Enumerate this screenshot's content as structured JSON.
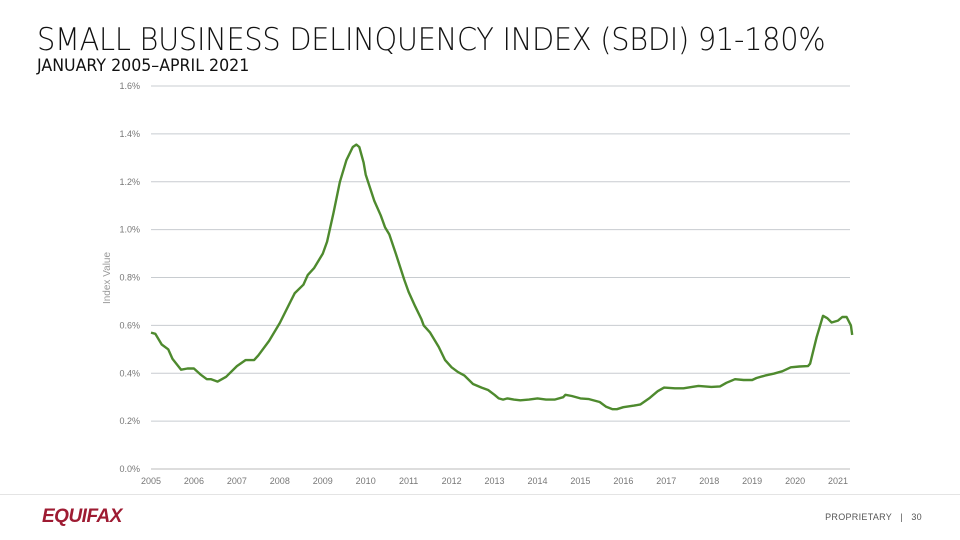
{
  "header": {
    "title": "SMALL BUSINESS DELINQUENCY INDEX (SBDI) 91-180%",
    "subtitle": "JANUARY 2005–APRIL 2021"
  },
  "footer": {
    "logo": "EQUIFAX",
    "proprietary": "PROPRIETARY",
    "separator": "|",
    "page": "30"
  },
  "chart_data": {
    "type": "line",
    "title": "",
    "xlabel": "",
    "ylabel": "Index Value",
    "xlim": [
      2005,
      2021.3
    ],
    "ylim": [
      0,
      1.6
    ],
    "grid": true,
    "line_color": "#4e8a2e",
    "x_ticks": [
      "2005",
      "2006",
      "2007",
      "2008",
      "2009",
      "2010",
      "2011",
      "2012",
      "2013",
      "2014",
      "2015",
      "2016",
      "2017",
      "2018",
      "2019",
      "2020",
      "2021"
    ],
    "y_ticks": [
      "0.0%",
      "0.2%",
      "0.4%",
      "0.6%",
      "0.8%",
      "1.0%",
      "1.2%",
      "1.4%",
      "1.6%"
    ],
    "series": [
      {
        "x": [
          2005.0,
          2005.1,
          2005.25,
          2005.4,
          2005.5,
          2005.7,
          2005.85,
          2006.0,
          2006.15,
          2006.3,
          2006.4,
          2006.55,
          2006.75,
          2007.0,
          2007.2,
          2007.4,
          2007.5,
          2007.75,
          2008.0,
          2008.25,
          2008.35,
          2008.55,
          2008.65,
          2008.8,
          2009.0,
          2009.1,
          2009.25,
          2009.4,
          2009.55,
          2009.7,
          2009.78,
          2009.85,
          2009.95,
          2010.0,
          2010.2,
          2010.35,
          2010.45,
          2010.55,
          2010.7,
          2010.9,
          2011.0,
          2011.15,
          2011.3,
          2011.35,
          2011.5,
          2011.7,
          2011.85,
          2012.0,
          2012.15,
          2012.3,
          2012.5,
          2012.7,
          2012.85,
          2013.0,
          2013.1,
          2013.2,
          2013.3,
          2013.45,
          2013.6,
          2013.8,
          2014.0,
          2014.2,
          2014.4,
          2014.6,
          2014.65,
          2014.8,
          2015.0,
          2015.2,
          2015.45,
          2015.6,
          2015.75,
          2015.85,
          2016.0,
          2016.25,
          2016.4,
          2016.6,
          2016.8,
          2016.95,
          2017.2,
          2017.4,
          2017.6,
          2017.75,
          2017.9,
          2018.05,
          2018.25,
          2018.4,
          2018.6,
          2018.8,
          2019.0,
          2019.1,
          2019.3,
          2019.5,
          2019.7,
          2019.9,
          2020.1,
          2020.3,
          2020.35,
          2020.5,
          2020.65,
          2020.75,
          2020.85,
          2021.0,
          2021.1,
          2021.2,
          2021.3,
          2021.33
        ],
        "values": [
          0.57,
          0.565,
          0.52,
          0.5,
          0.46,
          0.415,
          0.42,
          0.42,
          0.395,
          0.375,
          0.375,
          0.365,
          0.385,
          0.43,
          0.455,
          0.455,
          0.475,
          0.535,
          0.61,
          0.7,
          0.735,
          0.77,
          0.81,
          0.84,
          0.9,
          0.95,
          1.07,
          1.2,
          1.29,
          1.345,
          1.355,
          1.345,
          1.28,
          1.23,
          1.12,
          1.06,
          1.01,
          0.98,
          0.9,
          0.79,
          0.74,
          0.68,
          0.625,
          0.6,
          0.57,
          0.51,
          0.455,
          0.425,
          0.405,
          0.39,
          0.355,
          0.34,
          0.33,
          0.31,
          0.295,
          0.29,
          0.295,
          0.29,
          0.287,
          0.29,
          0.295,
          0.29,
          0.29,
          0.3,
          0.31,
          0.305,
          0.295,
          0.292,
          0.28,
          0.26,
          0.25,
          0.25,
          0.258,
          0.265,
          0.27,
          0.295,
          0.325,
          0.34,
          0.337,
          0.337,
          0.343,
          0.347,
          0.345,
          0.343,
          0.345,
          0.36,
          0.375,
          0.372,
          0.372,
          0.38,
          0.39,
          0.398,
          0.408,
          0.425,
          0.428,
          0.43,
          0.44,
          0.55,
          0.64,
          0.63,
          0.612,
          0.62,
          0.635,
          0.635,
          0.6,
          0.56
        ]
      }
    ]
  }
}
